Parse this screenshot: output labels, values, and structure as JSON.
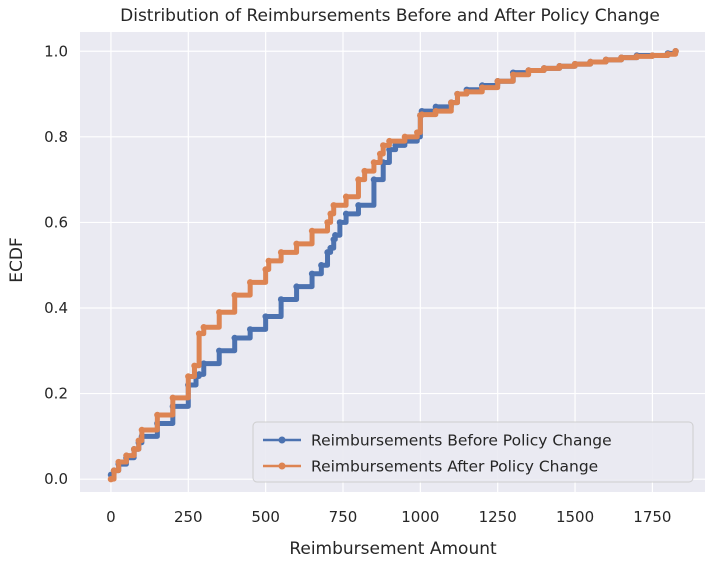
{
  "chart_data": {
    "type": "line",
    "title": "Distribution of Reimbursements Before and After Policy Change",
    "xlabel": "Reimbursement Amount",
    "ylabel": "ECDF",
    "xlim": [
      -100,
      1920
    ],
    "ylim": [
      -0.03,
      1.045
    ],
    "xticks": [
      0,
      250,
      500,
      750,
      1000,
      1250,
      1500,
      1750
    ],
    "yticks": [
      0.0,
      0.2,
      0.4,
      0.6,
      0.8,
      1.0
    ],
    "xtick_labels": [
      "0",
      "250",
      "500",
      "750",
      "1000",
      "1250",
      "1500",
      "1750"
    ],
    "ytick_labels": [
      "0.0",
      "0.2",
      "0.4",
      "0.6",
      "0.8",
      "1.0"
    ],
    "grid": true,
    "legend_position": "lower-right",
    "background": "#eaeaf2",
    "series": [
      {
        "name": "Reimbursements Before Policy Change",
        "color": "#4c72b0",
        "x": [
          0,
          10,
          25,
          50,
          75,
          90,
          100,
          150,
          200,
          250,
          275,
          285,
          300,
          350,
          400,
          450,
          500,
          550,
          600,
          650,
          680,
          700,
          710,
          720,
          725,
          740,
          760,
          800,
          850,
          880,
          900,
          920,
          950,
          990,
          1000,
          1005,
          1050,
          1100,
          1120,
          1150,
          1200,
          1250,
          1300,
          1350,
          1400,
          1450,
          1500,
          1550,
          1600,
          1650,
          1700,
          1750,
          1800,
          1825
        ],
        "y": [
          0.01,
          0.02,
          0.035,
          0.05,
          0.07,
          0.085,
          0.1,
          0.13,
          0.17,
          0.22,
          0.24,
          0.245,
          0.27,
          0.3,
          0.33,
          0.35,
          0.38,
          0.42,
          0.45,
          0.48,
          0.5,
          0.53,
          0.54,
          0.56,
          0.57,
          0.6,
          0.62,
          0.64,
          0.7,
          0.74,
          0.77,
          0.78,
          0.79,
          0.8,
          0.85,
          0.86,
          0.87,
          0.88,
          0.9,
          0.91,
          0.92,
          0.93,
          0.95,
          0.955,
          0.96,
          0.965,
          0.97,
          0.975,
          0.98,
          0.985,
          0.99,
          0.99,
          0.995,
          1.0
        ]
      },
      {
        "name": "Reimbursements After Policy Change",
        "color": "#dd8452",
        "x": [
          0,
          10,
          25,
          50,
          75,
          90,
          100,
          150,
          200,
          250,
          270,
          285,
          300,
          350,
          400,
          450,
          500,
          510,
          550,
          600,
          650,
          700,
          710,
          720,
          760,
          800,
          820,
          850,
          870,
          880,
          900,
          950,
          990,
          1000,
          1005,
          1050,
          1100,
          1120,
          1150,
          1200,
          1250,
          1300,
          1350,
          1400,
          1450,
          1500,
          1550,
          1600,
          1650,
          1700,
          1750,
          1800,
          1825
        ],
        "y": [
          0.0,
          0.02,
          0.04,
          0.055,
          0.07,
          0.09,
          0.115,
          0.15,
          0.19,
          0.24,
          0.265,
          0.34,
          0.355,
          0.39,
          0.43,
          0.46,
          0.49,
          0.51,
          0.53,
          0.55,
          0.58,
          0.6,
          0.62,
          0.64,
          0.66,
          0.7,
          0.72,
          0.74,
          0.76,
          0.78,
          0.79,
          0.8,
          0.81,
          0.85,
          0.852,
          0.86,
          0.88,
          0.9,
          0.905,
          0.915,
          0.93,
          0.945,
          0.955,
          0.96,
          0.965,
          0.97,
          0.975,
          0.98,
          0.985,
          0.988,
          0.99,
          0.993,
          1.0
        ]
      }
    ]
  }
}
